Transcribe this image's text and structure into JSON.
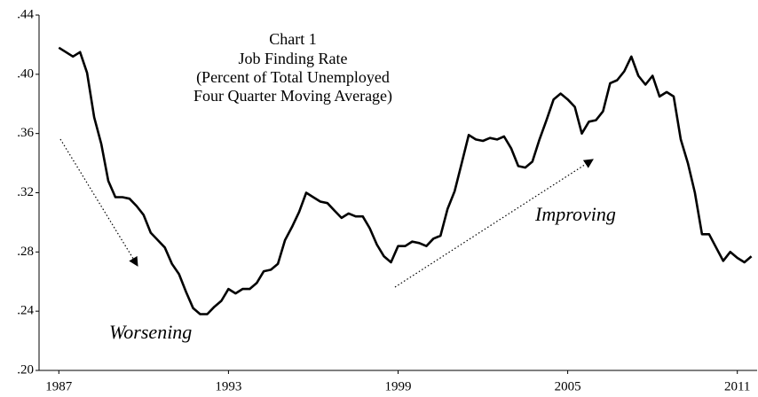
{
  "chart_data": {
    "type": "line",
    "title": [
      "Chart 1",
      "Job Finding Rate",
      "(Percent of Total Unemployed",
      "Four Quarter Moving Average)"
    ],
    "annotations": [
      "Worsening",
      "Improving"
    ],
    "x": [
      1987,
      1987.25,
      1987.5,
      1987.75,
      1988,
      1988.25,
      1988.5,
      1988.75,
      1989,
      1989.25,
      1989.5,
      1989.75,
      1990,
      1990.25,
      1990.5,
      1990.75,
      1991,
      1991.25,
      1991.5,
      1991.75,
      1992,
      1992.25,
      1992.5,
      1992.75,
      1993,
      1993.25,
      1993.5,
      1993.75,
      1994,
      1994.25,
      1994.5,
      1994.75,
      1995,
      1995.25,
      1995.5,
      1995.75,
      1996,
      1996.25,
      1996.5,
      1996.75,
      1997,
      1997.25,
      1997.5,
      1997.75,
      1998,
      1998.25,
      1998.5,
      1998.75,
      1999,
      1999.25,
      1999.5,
      1999.75,
      2000,
      2000.25,
      2000.5,
      2000.75,
      2001,
      2001.25,
      2001.5,
      2001.75,
      2002,
      2002.25,
      2002.5,
      2002.75,
      2003,
      2003.25,
      2003.5,
      2003.75,
      2004,
      2004.25,
      2004.5,
      2004.75,
      2005,
      2005.25,
      2005.5,
      2005.75,
      2006,
      2006.25,
      2006.5,
      2006.75,
      2007,
      2007.25,
      2007.5,
      2007.75,
      2008,
      2008.25,
      2008.5,
      2008.75,
      2009,
      2009.25,
      2009.5,
      2009.75,
      2010,
      2010.25,
      2010.5,
      2010.75,
      2011,
      2011.25,
      2011.5
    ],
    "series": [
      {
        "color": "#000000",
        "values": [
          0.418,
          0.415,
          0.412,
          0.415,
          0.401,
          0.371,
          0.353,
          0.328,
          0.317,
          0.317,
          0.316,
          0.311,
          0.305,
          0.293,
          0.288,
          0.283,
          0.272,
          0.265,
          0.253,
          0.242,
          0.238,
          0.238,
          0.243,
          0.247,
          0.255,
          0.252,
          0.255,
          0.255,
          0.259,
          0.267,
          0.268,
          0.272,
          0.288,
          0.297,
          0.307,
          0.32,
          0.317,
          0.314,
          0.313,
          0.308,
          0.303,
          0.306,
          0.304,
          0.304,
          0.296,
          0.285,
          0.277,
          0.273,
          0.284,
          0.284,
          0.287,
          0.286,
          0.284,
          0.289,
          0.291,
          0.309,
          0.321,
          0.34,
          0.359,
          0.356,
          0.355,
          0.357,
          0.356,
          0.358,
          0.35,
          0.338,
          0.337,
          0.341,
          0.356,
          0.369,
          0.383,
          0.387,
          0.383,
          0.378,
          0.36,
          0.368,
          0.369,
          0.375,
          0.394,
          0.396,
          0.402,
          0.412,
          0.399,
          0.393,
          0.399,
          0.385,
          0.388,
          0.385,
          0.356,
          0.34,
          0.32,
          0.292,
          0.292,
          0.283,
          0.274,
          0.28,
          0.276,
          0.273,
          0.277
        ]
      }
    ],
    "xlim": [
      1986.3,
      2011.7
    ],
    "xticks": [
      1987,
      1993,
      1999,
      2005,
      2011
    ],
    "ylim": [
      0.2,
      0.44
    ],
    "yticks": [
      {
        "value": 0.2,
        "label": ".20"
      },
      {
        "value": 0.24,
        "label": ".24"
      },
      {
        "value": 0.28,
        "label": ".28"
      },
      {
        "value": 0.32,
        "label": ".32"
      },
      {
        "value": 0.36,
        "label": ".36"
      },
      {
        "value": 0.4,
        "label": ".40"
      },
      {
        "value": 0.44,
        "label": ".44"
      }
    ]
  }
}
